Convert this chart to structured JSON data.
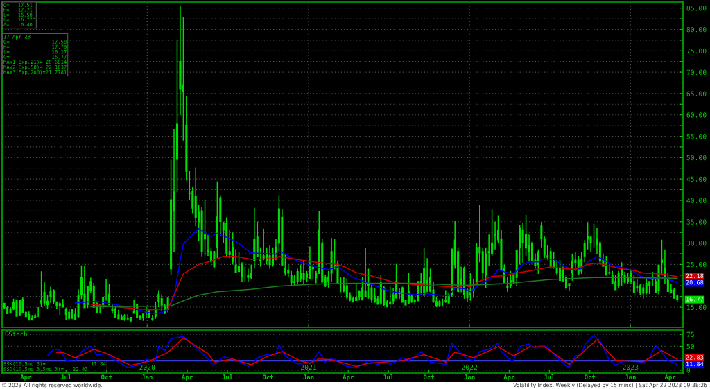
{
  "chart_data": [
    {
      "type": "candlestick",
      "color": "#00dd00",
      "x": [
        "2019-02-11",
        "2019-02-18",
        "2019-02-25",
        "2019-03-04",
        "2019-03-11",
        "2019-03-18",
        "2019-03-25",
        "2019-04-01",
        "2019-04-08",
        "2019-04-15",
        "2019-04-22",
        "2019-04-29",
        "2019-05-06",
        "2019-05-13",
        "2019-05-20",
        "2019-05-27",
        "2019-06-03",
        "2019-06-10",
        "2019-06-17",
        "2019-06-24",
        "2019-07-01",
        "2019-07-08",
        "2019-07-15",
        "2019-07-22",
        "2019-07-29",
        "2019-08-05",
        "2019-08-12",
        "2019-08-19",
        "2019-08-26",
        "2019-09-02",
        "2019-09-09",
        "2019-09-16",
        "2019-09-23",
        "2019-09-30",
        "2019-10-07",
        "2019-10-14",
        "2019-10-21",
        "2019-10-28",
        "2019-11-04",
        "2019-11-11",
        "2019-11-18",
        "2019-11-25",
        "2019-12-02",
        "2019-12-09",
        "2019-12-16",
        "2019-12-23",
        "2019-12-30",
        "2020-01-06",
        "2020-01-13",
        "2020-01-20",
        "2020-01-27",
        "2020-02-03",
        "2020-02-10",
        "2020-02-17",
        "2020-02-24",
        "2020-03-02",
        "2020-03-09",
        "2020-03-16",
        "2020-03-23",
        "2020-03-30",
        "2020-04-06",
        "2020-04-13",
        "2020-04-20",
        "2020-04-27",
        "2020-05-04",
        "2020-05-11",
        "2020-05-18",
        "2020-05-25",
        "2020-06-01",
        "2020-06-08",
        "2020-06-15",
        "2020-06-22",
        "2020-06-29",
        "2020-07-06",
        "2020-07-13",
        "2020-07-20",
        "2020-07-27",
        "2020-08-03",
        "2020-08-10",
        "2020-08-17",
        "2020-08-24",
        "2020-08-31",
        "2020-09-07",
        "2020-09-14",
        "2020-09-21",
        "2020-09-28",
        "2020-10-05",
        "2020-10-12",
        "2020-10-19",
        "2020-10-26",
        "2020-11-02",
        "2020-11-09",
        "2020-11-16",
        "2020-11-23",
        "2020-11-30",
        "2020-12-07",
        "2020-12-14",
        "2020-12-21",
        "2020-12-28",
        "2021-01-04",
        "2021-01-11",
        "2021-01-18",
        "2021-01-25",
        "2021-02-01",
        "2021-02-08",
        "2021-02-15",
        "2021-02-22",
        "2021-03-01",
        "2021-03-08",
        "2021-03-15",
        "2021-03-22",
        "2021-03-29",
        "2021-04-05",
        "2021-04-12",
        "2021-04-19",
        "2021-04-26",
        "2021-05-03",
        "2021-05-10",
        "2021-05-17",
        "2021-05-24",
        "2021-05-31",
        "2021-06-07",
        "2021-06-14",
        "2021-06-21",
        "2021-06-28",
        "2021-07-05",
        "2021-07-12",
        "2021-07-19",
        "2021-07-26",
        "2021-08-02",
        "2021-08-09",
        "2021-08-16",
        "2021-08-23",
        "2021-08-30",
        "2021-09-06",
        "2021-09-13",
        "2021-09-20",
        "2021-09-27",
        "2021-10-04",
        "2021-10-11",
        "2021-10-18",
        "2021-10-25",
        "2021-11-01",
        "2021-11-08",
        "2021-11-15",
        "2021-11-22",
        "2021-11-29",
        "2021-12-06",
        "2021-12-13",
        "2021-12-20",
        "2021-12-27",
        "2022-01-03",
        "2022-01-10",
        "2022-01-17",
        "2022-01-24",
        "2022-01-31",
        "2022-02-07",
        "2022-02-14",
        "2022-02-21",
        "2022-02-28",
        "2022-03-07",
        "2022-03-14",
        "2022-03-21",
        "2022-03-28",
        "2022-04-04",
        "2022-04-11",
        "2022-04-18",
        "2022-04-25",
        "2022-05-02",
        "2022-05-09",
        "2022-05-16",
        "2022-05-23",
        "2022-05-30",
        "2022-06-06",
        "2022-06-13",
        "2022-06-20",
        "2022-06-27",
        "2022-07-04",
        "2022-07-11",
        "2022-07-18",
        "2022-07-25",
        "2022-08-01",
        "2022-08-08",
        "2022-08-15",
        "2022-08-22",
        "2022-08-29",
        "2022-09-05",
        "2022-09-12",
        "2022-09-19",
        "2022-09-26",
        "2022-10-03",
        "2022-10-10",
        "2022-10-17",
        "2022-10-24",
        "2022-10-31",
        "2022-11-07",
        "2022-11-14",
        "2022-11-21",
        "2022-11-28",
        "2022-12-05",
        "2022-12-12",
        "2022-12-19",
        "2022-12-26",
        "2023-01-02",
        "2023-01-09",
        "2023-01-16",
        "2023-01-23",
        "2023-01-30",
        "2023-02-06",
        "2023-02-13",
        "2023-02-20",
        "2023-02-27",
        "2023-03-06",
        "2023-03-13",
        "2023-03-20",
        "2023-03-27",
        "2023-04-03",
        "2023-04-10",
        "2023-04-17"
      ],
      "ohlc": [
        [
          15.9,
          16.0,
          14.5,
          14.9
        ],
        [
          14.9,
          15.2,
          13.5,
          13.5
        ],
        [
          13.7,
          15.0,
          13.5,
          14.6
        ],
        [
          14.6,
          17.0,
          14.3,
          16.1
        ],
        [
          16.5,
          16.7,
          12.9,
          12.9
        ],
        [
          13.1,
          16.8,
          12.9,
          16.5
        ],
        [
          16.8,
          17.3,
          13.7,
          13.7
        ],
        [
          13.8,
          14.0,
          12.8,
          12.8
        ],
        [
          13.2,
          14.0,
          12.0,
          12.0
        ],
        [
          12.4,
          13.0,
          11.9,
          12.1
        ],
        [
          12.9,
          13.5,
          12.4,
          12.7
        ],
        [
          13.0,
          15.0,
          12.7,
          13.0
        ],
        [
          16.5,
          23.4,
          15.0,
          16.0
        ],
        [
          18.5,
          20.8,
          15.2,
          16.0
        ],
        [
          15.6,
          17.9,
          14.5,
          16.4
        ],
        [
          17.5,
          19.8,
          16.0,
          18.7
        ],
        [
          18.9,
          19.2,
          15.8,
          16.3
        ],
        [
          16.2,
          16.3,
          14.6,
          15.3
        ],
        [
          15.8,
          16.2,
          13.2,
          15.4
        ],
        [
          15.5,
          16.9,
          14.9,
          15.1
        ],
        [
          14.4,
          14.9,
          12.1,
          13.3
        ],
        [
          13.8,
          14.5,
          12.0,
          12.4
        ],
        [
          12.5,
          14.5,
          12.2,
          14.5
        ],
        [
          13.3,
          14.8,
          12.0,
          12.2
        ],
        [
          12.8,
          19.2,
          12.5,
          17.6
        ],
        [
          22.0,
          24.8,
          16.9,
          18.0
        ],
        [
          18.0,
          24.6,
          14.9,
          14.9
        ],
        [
          15.6,
          20.0,
          14.8,
          19.9
        ],
        [
          21.0,
          21.9,
          18.4,
          19.0
        ],
        [
          19.8,
          20.7,
          14.9,
          15.0
        ],
        [
          15.9,
          16.1,
          13.7,
          13.7
        ],
        [
          15.5,
          15.8,
          13.5,
          15.3
        ],
        [
          15.4,
          17.4,
          14.7,
          17.2
        ],
        [
          17.0,
          21.5,
          16.5,
          17.0
        ],
        [
          18.0,
          20.5,
          15.4,
          15.6
        ],
        [
          14.6,
          15.6,
          13.5,
          14.3
        ],
        [
          14.6,
          15.2,
          12.6,
          12.7
        ],
        [
          13.2,
          14.4,
          12.3,
          12.3
        ],
        [
          12.7,
          13.3,
          12.0,
          12.1
        ],
        [
          12.9,
          13.4,
          11.8,
          12.1
        ],
        [
          12.4,
          13.4,
          11.9,
          12.3
        ],
        [
          11.9,
          12.7,
          11.4,
          12.6
        ],
        [
          14.0,
          16.8,
          13.5,
          13.6
        ],
        [
          15.7,
          15.9,
          12.4,
          12.6
        ],
        [
          12.8,
          13.0,
          12.0,
          12.5
        ],
        [
          12.6,
          13.5,
          11.8,
          13.4
        ],
        [
          14.0,
          15.0,
          12.5,
          13.8
        ],
        [
          14.2,
          14.5,
          12.4,
          12.6
        ],
        [
          12.3,
          13.2,
          11.8,
          12.1
        ],
        [
          12.9,
          16.3,
          12.3,
          14.6
        ],
        [
          16.3,
          19.0,
          15.0,
          18.0
        ],
        [
          17.0,
          18.0,
          14.1,
          15.5
        ],
        [
          15.3,
          15.8,
          13.4,
          13.7
        ],
        [
          14.5,
          17.1,
          13.8,
          17.1
        ],
        [
          24.0,
          49.5,
          22.5,
          40.1
        ],
        [
          37.6,
          56.7,
          28.0,
          41.9
        ],
        [
          49.6,
          77.6,
          41.9,
          57.8
        ],
        [
          72.5,
          85.5,
          60.0,
          66.0
        ],
        [
          67.0,
          83.0,
          54.0,
          65.5
        ],
        [
          57.6,
          64.5,
          44.6,
          46.8
        ],
        [
          41.6,
          46.9,
          40.1,
          41.7
        ],
        [
          42.0,
          43.2,
          37.0,
          38.2
        ],
        [
          41.0,
          47.7,
          34.0,
          35.9
        ],
        [
          35.0,
          38.9,
          30.5,
          37.2
        ],
        [
          37.5,
          38.4,
          26.9,
          28.0
        ],
        [
          31.0,
          40.1,
          27.1,
          31.9
        ],
        [
          28.0,
          32.0,
          27.0,
          28.2
        ],
        [
          28.0,
          29.0,
          25.4,
          25.8
        ],
        [
          28.0,
          28.2,
          24.0,
          24.5
        ],
        [
          29.0,
          44.4,
          26.5,
          36.1
        ],
        [
          40.6,
          41.2,
          31.7,
          35.1
        ],
        [
          33.0,
          35.0,
          30.0,
          34.7
        ],
        [
          34.5,
          36.0,
          26.7,
          27.7
        ],
        [
          28.0,
          33.0,
          26.5,
          27.3
        ],
        [
          29.0,
          32.5,
          25.0,
          25.7
        ],
        [
          24.8,
          28.6,
          23.0,
          23.2
        ],
        [
          23.4,
          28.0,
          23.2,
          24.5
        ],
        [
          25.0,
          25.5,
          21.0,
          22.2
        ],
        [
          22.0,
          24.5,
          21.0,
          22.0
        ],
        [
          22.0,
          24.0,
          21.0,
          22.5
        ],
        [
          22.0,
          25.0,
          21.5,
          23.0
        ],
        [
          26.0,
          38.3,
          24.0,
          30.8
        ],
        [
          31.5,
          35.0,
          26.8,
          26.9
        ],
        [
          26.0,
          29.0,
          24.5,
          25.8
        ],
        [
          27.0,
          33.4,
          26.0,
          26.4
        ],
        [
          26.0,
          29.0,
          25.0,
          27.6
        ],
        [
          27.0,
          29.6,
          24.0,
          25.0
        ],
        [
          25.0,
          29.0,
          24.5,
          27.4
        ],
        [
          29.0,
          31.0,
          26.0,
          27.6
        ],
        [
          30.0,
          41.2,
          28.0,
          38.0
        ],
        [
          36.0,
          38.0,
          24.7,
          24.9
        ],
        [
          24.0,
          27.5,
          22.4,
          23.1
        ],
        [
          23.0,
          25.0,
          22.0,
          23.7
        ],
        [
          22.5,
          23.5,
          20.2,
          20.8
        ],
        [
          21.0,
          22.5,
          20.0,
          20.8
        ],
        [
          21.0,
          24.0,
          20.5,
          23.3
        ],
        [
          23.0,
          25.0,
          21.0,
          21.6
        ],
        [
          23.0,
          26.0,
          20.5,
          21.5
        ],
        [
          22.0,
          23.5,
          21.0,
          22.8
        ],
        [
          25.0,
          29.2,
          21.5,
          21.6
        ],
        [
          24.0,
          25.0,
          21.5,
          24.3
        ],
        [
          23.0,
          23.5,
          20.6,
          21.9
        ],
        [
          23.0,
          37.5,
          22.8,
          33.1
        ],
        [
          30.0,
          31.0,
          20.9,
          20.9
        ],
        [
          21.8,
          22.5,
          19.7,
          20.0
        ],
        [
          21.0,
          23.5,
          19.6,
          22.1
        ],
        [
          23.0,
          31.2,
          21.0,
          28.0
        ],
        [
          25.0,
          31.0,
          23.9,
          24.7
        ],
        [
          25.0,
          25.9,
          20.5,
          20.7
        ],
        [
          21.0,
          22.0,
          18.5,
          21.0
        ],
        [
          20.0,
          22.0,
          18.5,
          18.9
        ],
        [
          20.0,
          21.8,
          16.9,
          17.3
        ],
        [
          17.6,
          18.5,
          16.4,
          16.7
        ],
        [
          17.0,
          17.5,
          16.1,
          16.3
        ],
        [
          16.6,
          20.5,
          16.6,
          17.3
        ],
        [
          17.5,
          19.0,
          16.6,
          18.6
        ],
        [
          19.5,
          22.0,
          16.7,
          16.7
        ],
        [
          17.5,
          28.9,
          17.5,
          18.8
        ],
        [
          20.5,
          24.0,
          17.0,
          20.2
        ],
        [
          19.5,
          20.5,
          16.0,
          16.8
        ],
        [
          17.5,
          19.5,
          16.0,
          16.4
        ],
        [
          16.9,
          17.6,
          15.6,
          15.7
        ],
        [
          16.0,
          22.5,
          15.5,
          20.7
        ],
        [
          19.5,
          20.0,
          15.3,
          15.6
        ],
        [
          16.0,
          16.8,
          15.0,
          15.1
        ],
        [
          15.9,
          19.8,
          15.5,
          16.2
        ],
        [
          16.5,
          19.5,
          15.6,
          17.9
        ],
        [
          21.0,
          25.1,
          17.0,
          17.2
        ],
        [
          18.5,
          19.5,
          16.9,
          18.2
        ],
        [
          19.5,
          19.8,
          16.2,
          16.2
        ],
        [
          16.5,
          16.8,
          15.4,
          15.5
        ],
        [
          16.0,
          23.0,
          15.7,
          18.6
        ],
        [
          17.5,
          18.0,
          16.0,
          16.4
        ],
        [
          16.5,
          17.0,
          15.6,
          16.4
        ],
        [
          16.5,
          21.1,
          16.5,
          21.0
        ],
        [
          21.0,
          23.0,
          17.8,
          20.8
        ],
        [
          24.0,
          28.8,
          17.8,
          17.8
        ],
        [
          19.0,
          26.5,
          18.5,
          21.2
        ],
        [
          22.0,
          24.0,
          18.5,
          18.8
        ],
        [
          19.0,
          21.0,
          16.0,
          16.3
        ],
        [
          16.3,
          17.5,
          15.0,
          15.4
        ],
        [
          15.5,
          16.8,
          15.0,
          16.3
        ],
        [
          16.5,
          17.0,
          15.3,
          16.5
        ],
        [
          16.5,
          19.0,
          16.0,
          16.3
        ],
        [
          16.0,
          18.5,
          15.9,
          17.9
        ],
        [
          18.0,
          28.6,
          17.5,
          28.6
        ],
        [
          25.0,
          35.3,
          24.0,
          30.7
        ],
        [
          28.0,
          29.0,
          18.5,
          18.7
        ],
        [
          20.0,
          24.5,
          18.5,
          21.6
        ],
        [
          24.0,
          24.5,
          17.0,
          18.0
        ],
        [
          19.0,
          19.5,
          16.2,
          17.2
        ],
        [
          18.0,
          23.0,
          16.5,
          18.8
        ],
        [
          19.0,
          21.5,
          17.2,
          19.2
        ],
        [
          20.5,
          30.0,
          20.5,
          28.9
        ],
        [
          29.0,
          38.9,
          25.5,
          27.7
        ],
        [
          28.0,
          28.8,
          21.5,
          23.2
        ],
        [
          22.5,
          29.0,
          19.5,
          27.4
        ],
        [
          28.0,
          32.0,
          24.7,
          27.8
        ],
        [
          30.0,
          37.8,
          27.0,
          27.6
        ],
        [
          32.0,
          35.0,
          28.5,
          31.9
        ],
        [
          33.0,
          36.5,
          30.0,
          30.8
        ],
        [
          31.0,
          33.0,
          23.5,
          23.9
        ],
        [
          24.0,
          25.0,
          20.8,
          20.8
        ],
        [
          20.0,
          22.0,
          18.6,
          19.6
        ],
        [
          20.0,
          23.5,
          19.5,
          21.2
        ],
        [
          21.0,
          23.0,
          20.5,
          22.7
        ],
        [
          22.0,
          28.5,
          20.0,
          28.2
        ],
        [
          29.0,
          34.2,
          25.0,
          33.4
        ],
        [
          33.0,
          34.8,
          25.4,
          30.2
        ],
        [
          32.0,
          36.6,
          27.0,
          28.9
        ],
        [
          28.0,
          32.0,
          25.5,
          29.4
        ],
        [
          30.0,
          30.5,
          25.0,
          25.7
        ],
        [
          26.0,
          27.5,
          24.0,
          24.8
        ],
        [
          25.0,
          28.5,
          22.8,
          27.8
        ],
        [
          34.0,
          35.0,
          29.0,
          31.1
        ],
        [
          31.0,
          31.5,
          26.5,
          27.2
        ],
        [
          27.0,
          29.5,
          26.0,
          26.7
        ],
        [
          28.0,
          29.0,
          24.0,
          24.6
        ],
        [
          26.0,
          28.0,
          24.0,
          24.2
        ],
        [
          24.0,
          26.0,
          22.6,
          23.0
        ],
        [
          24.0,
          26.0,
          21.3,
          21.3
        ],
        [
          23.5,
          24.5,
          21.0,
          21.2
        ],
        [
          22.0,
          22.5,
          19.1,
          19.5
        ],
        [
          20.0,
          20.5,
          18.9,
          20.5
        ],
        [
          23.0,
          27.4,
          21.2,
          25.6
        ],
        [
          26.0,
          28.0,
          23.5,
          25.5
        ],
        [
          26.0,
          27.0,
          22.8,
          22.8
        ],
        [
          23.5,
          28.0,
          22.8,
          26.3
        ],
        [
          27.0,
          30.7,
          25.5,
          29.9
        ],
        [
          31.0,
          34.9,
          28.5,
          31.6
        ],
        [
          30.0,
          31.5,
          28.0,
          31.4
        ],
        [
          32.0,
          34.5,
          29.0,
          32.0
        ],
        [
          31.0,
          33.5,
          27.4,
          29.7
        ],
        [
          30.0,
          30.5,
          25.0,
          25.8
        ],
        [
          26.0,
          27.5,
          24.5,
          24.6
        ],
        [
          25.0,
          27.0,
          22.5,
          22.5
        ],
        [
          23.0,
          25.0,
          22.5,
          23.1
        ],
        [
          22.5,
          23.5,
          20.5,
          20.5
        ],
        [
          21.0,
          22.5,
          19.0,
          19.1
        ],
        [
          20.0,
          23.5,
          19.5,
          22.8
        ],
        [
          24.0,
          25.5,
          19.9,
          22.6
        ],
        [
          22.5,
          23.3,
          20.6,
          20.9
        ],
        [
          21.0,
          23.0,
          20.5,
          21.7
        ],
        [
          23.0,
          23.8,
          20.5,
          21.1
        ],
        [
          21.0,
          22.5,
          18.3,
          18.4
        ],
        [
          19.5,
          21.5,
          18.6,
          19.9
        ],
        [
          20.0,
          20.5,
          17.9,
          18.5
        ],
        [
          19.5,
          20.5,
          17.0,
          18.3
        ],
        [
          18.5,
          21.5,
          18.0,
          20.5
        ],
        [
          21.0,
          21.0,
          18.1,
          20.0
        ],
        [
          21.5,
          23.3,
          20.0,
          21.7
        ],
        [
          21.0,
          21.5,
          18.5,
          18.5
        ],
        [
          19.0,
          25.0,
          18.0,
          24.8
        ],
        [
          26.0,
          30.8,
          22.5,
          25.5
        ],
        [
          24.0,
          28.5,
          20.5,
          21.7
        ],
        [
          21.5,
          23.0,
          18.7,
          18.7
        ],
        [
          19.0,
          20.5,
          18.2,
          18.4
        ],
        [
          19.0,
          19.5,
          17.0,
          17.1
        ],
        [
          17.58,
          17.79,
          16.17,
          16.77
        ]
      ],
      "series": [
        {
          "type": "line",
          "color": "#0000ff",
          "x": [
            "2019-07-22",
            "2019-09-09",
            "2019-11-11",
            "2020-01-13",
            "2020-02-03",
            "2020-02-17",
            "2020-03-02",
            "2020-03-16",
            "2020-03-23",
            "2020-04-27",
            "2020-05-25",
            "2020-06-08",
            "2020-07-20",
            "2020-08-24",
            "2020-10-19",
            "2020-10-26",
            "2020-12-07",
            "2021-01-18",
            "2021-02-15",
            "2021-03-08",
            "2021-04-12",
            "2021-06-01",
            "2021-07-05",
            "2021-08-30",
            "2021-09-20",
            "2021-10-18",
            "2021-11-15",
            "2021-11-29",
            "2021-12-20",
            "2022-01-03",
            "2022-01-24",
            "2022-02-21",
            "2022-03-07",
            "2022-03-21",
            "2022-04-11",
            "2022-05-02",
            "2022-05-16",
            "2022-06-06",
            "2022-06-13",
            "2022-07-11",
            "2022-08-01",
            "2022-08-22",
            "2022-09-12",
            "2022-09-26",
            "2022-10-17",
            "2022-10-31",
            "2022-11-21",
            "2022-12-12",
            "2023-01-02",
            "2023-01-23",
            "2023-02-06",
            "2023-02-27",
            "2023-03-20",
            "2023-04-17"
          ],
          "values": [
            16.0,
            16.4,
            15.2,
            13.5,
            13.7,
            14.6,
            17.5,
            26.0,
            29.8,
            33.4,
            31.5,
            32.3,
            30.4,
            27.7,
            27.4,
            28.2,
            25.8,
            24.4,
            23.8,
            24.4,
            22.0,
            20.0,
            18.7,
            17.9,
            18.2,
            17.9,
            17.7,
            19.5,
            19.3,
            18.6,
            20.3,
            21.9,
            23.8,
            23.3,
            22.8,
            25.0,
            25.6,
            25.6,
            26.2,
            26.2,
            24.8,
            23.8,
            24.0,
            25.6,
            26.8,
            26.2,
            24.8,
            24.3,
            23.7,
            22.3,
            21.8,
            21.8,
            21.9,
            20.68
          ]
        },
        {
          "type": "line",
          "color": "#cc0000",
          "x": [
            "2019-08-26",
            "2019-11-11",
            "2020-01-06",
            "2020-02-17",
            "2020-03-09",
            "2020-03-23",
            "2020-04-27",
            "2020-05-25",
            "2020-06-22",
            "2020-07-20",
            "2020-08-24",
            "2020-10-19",
            "2020-10-26",
            "2020-11-23",
            "2021-01-11",
            "2021-03-08",
            "2021-03-22",
            "2021-04-19",
            "2021-05-24",
            "2021-06-21",
            "2021-07-19",
            "2021-08-30",
            "2021-10-18",
            "2021-12-06",
            "2021-12-20",
            "2022-01-03",
            "2022-01-24",
            "2022-02-21",
            "2022-03-21",
            "2022-04-18",
            "2022-05-23",
            "2022-06-06",
            "2022-07-04",
            "2022-08-08",
            "2022-08-29",
            "2022-09-26",
            "2022-10-17",
            "2022-11-14",
            "2022-12-05",
            "2023-01-09",
            "2023-01-30",
            "2023-03-13",
            "2023-04-17"
          ],
          "values": [
            15.7,
            14.9,
            14.4,
            14.6,
            19.5,
            22.8,
            25.0,
            25.8,
            26.9,
            26.9,
            26.2,
            26.4,
            26.9,
            26.4,
            25.6,
            25.0,
            24.5,
            23.1,
            22.3,
            21.5,
            20.7,
            20.3,
            20.0,
            19.6,
            20.1,
            19.7,
            21.1,
            22.2,
            22.4,
            23.0,
            23.6,
            23.9,
            24.4,
            24.0,
            23.9,
            25.0,
            25.3,
            24.7,
            24.1,
            23.6,
            23.0,
            22.8,
            22.18
          ]
        },
        {
          "type": "line",
          "color": "#1f7a1f",
          "x": [
            "2019-08-26",
            "2020-01-06",
            "2020-02-24",
            "2020-03-23",
            "2020-04-27",
            "2020-06-08",
            "2020-08-24",
            "2020-10-26",
            "2021-01-11",
            "2021-04-19",
            "2021-08-30",
            "2021-12-20",
            "2022-03-21",
            "2022-07-04",
            "2022-10-17",
            "2023-01-09",
            "2023-04-17"
          ],
          "values": [
            15.1,
            15.2,
            15.3,
            16.5,
            17.8,
            18.6,
            19.2,
            19.9,
            20.4,
            20.6,
            20.6,
            20.1,
            20.5,
            21.5,
            22.0,
            21.9,
            21.78
          ]
        }
      ],
      "xlim": [
        "2019-02-06",
        "2023-04-30"
      ],
      "xticks": [
        {
          "value": "2020-01-01",
          "label": null
        },
        {
          "value": "2021-01-01",
          "label": null
        },
        {
          "value": "2022-01-01",
          "label": null
        },
        {
          "value": "2023-01-01",
          "label": null
        }
      ],
      "ylim": [
        10.3,
        86.4
      ],
      "yticks": [
        {
          "value": 12.5,
          "label": null
        },
        {
          "value": 15,
          "label": "15.00"
        },
        {
          "value": 17.5,
          "label": null
        },
        {
          "value": 20,
          "label": null
        },
        {
          "value": 22.5,
          "label": null
        },
        {
          "value": 25,
          "label": "25.00"
        },
        {
          "value": 27.5,
          "label": null
        },
        {
          "value": 30,
          "label": "30.00"
        },
        {
          "value": 32.5,
          "label": null
        },
        {
          "value": 35,
          "label": "35.00"
        },
        {
          "value": 37.5,
          "label": null
        },
        {
          "value": 40,
          "label": "40.00"
        },
        {
          "value": 42.5,
          "label": null
        },
        {
          "value": 45,
          "label": "45.00"
        },
        {
          "value": 47.5,
          "label": null
        },
        {
          "value": 50,
          "label": "50.00"
        },
        {
          "value": 52.5,
          "label": null
        },
        {
          "value": 55,
          "label": "55.00"
        },
        {
          "value": 57.5,
          "label": null
        },
        {
          "value": 60,
          "label": "60.00"
        },
        {
          "value": 62.5,
          "label": null
        },
        {
          "value": 65,
          "label": "65.00"
        },
        {
          "value": 67.5,
          "label": null
        },
        {
          "value": 70,
          "label": "70.00"
        },
        {
          "value": 72.5,
          "label": null
        },
        {
          "value": 75,
          "label": "75.00"
        },
        {
          "value": 77.5,
          "label": null
        },
        {
          "value": 80,
          "label": "80.00"
        },
        {
          "value": 82.5,
          "label": null
        },
        {
          "value": 85,
          "label": "85.00"
        }
      ],
      "grid": true,
      "tick_labels": "y",
      "annotations": [
        "O=   17.51\nH=   17.71\nL=   16.58\nL=   16.77^\nΔ=   -0.40",
        "17 Apr 23\nO=              17.58\nH=              17.79\nL=              16.17\nC=              16.77\nMAx1(Exp,21)= 20.6814\nMAx2(Exp,50)= 22.1837\nMAx3(Exp,200)=21.7781",
        {
          "text": "22.18",
          "y": 22.18
        },
        {
          "text": "20.68",
          "y": 20.68
        },
        {
          "text": "16.77",
          "y": 16.77
        }
      ]
    },
    {
      "type": "line",
      "title": "SStoch",
      "series": [
        {
          "type": "line",
          "color": "#0000ff",
          "x": [
            "2019-05-20",
            "2019-06-03",
            "2019-06-17",
            "2019-07-01",
            "2019-07-22",
            "2019-08-05",
            "2019-08-26",
            "2019-09-09",
            "2019-09-30",
            "2019-10-21",
            "2019-11-18",
            "2019-12-16",
            "2019-12-30",
            "2020-01-20",
            "2020-01-27",
            "2020-02-10",
            "2020-02-24",
            "2020-03-09",
            "2020-03-23",
            "2020-04-13",
            "2020-05-11",
            "2020-06-01",
            "2020-06-22",
            "2020-07-13",
            "2020-08-17",
            "2020-08-24",
            "2020-09-07",
            "2020-09-28",
            "2020-10-19",
            "2020-10-26",
            "2020-11-09",
            "2020-12-07",
            "2021-01-04",
            "2021-01-11",
            "2021-01-25",
            "2021-02-08",
            "2021-02-22",
            "2021-03-29",
            "2021-04-19",
            "2021-05-17",
            "2021-06-07",
            "2021-06-21",
            "2021-07-05",
            "2021-08-02",
            "2021-08-16",
            "2021-08-30",
            "2021-09-13",
            "2021-09-20",
            "2021-10-04",
            "2021-11-08",
            "2021-11-22",
            "2021-12-06",
            "2021-12-27",
            "2022-01-10",
            "2022-01-24",
            "2022-02-14",
            "2022-03-07",
            "2022-03-14",
            "2022-04-04",
            "2022-04-11",
            "2022-04-25",
            "2022-05-16",
            "2022-05-30",
            "2022-06-13",
            "2022-06-27",
            "2022-07-18",
            "2022-08-08",
            "2022-08-15",
            "2022-08-29",
            "2022-09-12",
            "2022-09-19",
            "2022-10-10",
            "2022-10-24",
            "2022-11-14",
            "2022-11-28",
            "2022-12-12",
            "2023-01-02",
            "2023-01-30",
            "2023-02-13",
            "2023-02-27",
            "2023-03-27",
            "2023-04-17"
          ],
          "values": [
            30.2,
            43.7,
            42,
            21,
            19,
            39,
            50,
            32,
            34.7,
            21,
            5.4,
            12,
            23,
            19,
            50,
            41,
            66,
            68.5,
            70.7,
            55,
            30,
            10,
            28,
            23.5,
            8.6,
            10,
            26,
            32.5,
            34.7,
            52.8,
            30,
            13,
            14.4,
            19,
            39,
            16.7,
            26,
            7.7,
            5.4,
            19,
            12,
            19,
            12,
            26,
            21,
            26,
            39,
            32.5,
            16.7,
            12,
            57,
            41,
            23.5,
            21,
            39,
            43.5,
            57,
            39,
            21,
            21,
            50,
            55,
            46,
            52.8,
            48.3,
            26,
            10,
            6.4,
            30,
            32.5,
            52.8,
            73,
            61.7,
            21,
            10,
            17.6,
            19,
            16,
            26,
            52.8,
            21,
            11.84
          ]
        },
        {
          "type": "line",
          "color": "#dd0000",
          "x": [
            "2019-06-10",
            "2019-06-24",
            "2019-07-22",
            "2019-09-02",
            "2019-09-30",
            "2019-11-25",
            "2020-01-06",
            "2020-02-17",
            "2020-03-23",
            "2020-05-18",
            "2020-06-01",
            "2020-07-13",
            "2020-08-24",
            "2020-09-28",
            "2020-11-02",
            "2020-12-14",
            "2021-01-04",
            "2021-01-25",
            "2021-02-22",
            "2021-04-19",
            "2021-05-17",
            "2021-08-02",
            "2021-09-20",
            "2021-11-08",
            "2021-11-29",
            "2022-01-10",
            "2022-03-07",
            "2022-04-11",
            "2022-05-16",
            "2022-06-20",
            "2022-08-15",
            "2022-10-17",
            "2022-11-28",
            "2023-01-30",
            "2023-03-13",
            "2023-04-17"
          ],
          "values": [
            37,
            37,
            26,
            43.5,
            35.5,
            10,
            19,
            37,
            67.6,
            34.7,
            16.7,
            23.5,
            11.4,
            28,
            39,
            19,
            14.4,
            23.5,
            22,
            7.7,
            14.4,
            20,
            32.5,
            16.7,
            37.7,
            26,
            49,
            30,
            48.3,
            49,
            12,
            64,
            21,
            17.6,
            41,
            22.83
          ]
        }
      ],
      "xlim": [
        "2019-02-06",
        "2023-04-30"
      ],
      "xticks": [
        {
          "value": "2019-04-01",
          "label": "Apr"
        },
        {
          "value": "2019-07-01",
          "label": "Jul"
        },
        {
          "value": "2019-10-01",
          "label": "Oct"
        },
        {
          "value": "2020-01-01",
          "label": "Jan"
        },
        {
          "value": "2020-04-01",
          "label": "Apr"
        },
        {
          "value": "2020-07-01",
          "label": "Jul"
        },
        {
          "value": "2020-10-01",
          "label": "Oct"
        },
        {
          "value": "2021-01-01",
          "label": "Jan"
        },
        {
          "value": "2021-04-01",
          "label": "Apr"
        },
        {
          "value": "2021-07-01",
          "label": "Jul"
        },
        {
          "value": "2021-10-01",
          "label": "Oct"
        },
        {
          "value": "2022-01-01",
          "label": "Jan"
        },
        {
          "value": "2022-04-01",
          "label": "Apr"
        },
        {
          "value": "2022-07-01",
          "label": "Jul"
        },
        {
          "value": "2022-10-01",
          "label": "Oct"
        },
        {
          "value": "2023-01-01",
          "label": "Jan"
        },
        {
          "value": "2023-04-01",
          "label": "Apr"
        }
      ],
      "x2lim": [
        "2019-02-06",
        "2023-04-30"
      ],
      "x2ticks": [
        {
          "value": "2020-01-01",
          "label": "2020"
        },
        {
          "value": "2021-01-01",
          "label": "2021"
        },
        {
          "value": "2022-01-01",
          "label": "2022"
        },
        {
          "value": "2023-01-01",
          "label": "2023"
        }
      ],
      "ylim": [
        -6,
        84
      ],
      "yticks": [
        0,
        {
          "value": 25,
          "label": null
        },
        50,
        75
      ],
      "grid": "y",
      "ref_lines": [
        {
          "axis": "y",
          "value": 20,
          "color": "#3a3ad8"
        }
      ],
      "annotations": [
        "SSK(10,5mo,3)=               11.84\nSSD(10,5mo,3,5mo,3)=   22.83",
        "© 2023 All rights reserved worldwide.",
        "Volatility Index, Weekly (Delayed by 15 mins) | Sat Apr 22 2023 09:38:26",
        {
          "text": "22.83",
          "y": 22.83
        },
        {
          "text": "11.84",
          "y": 11.84
        }
      ]
    }
  ]
}
